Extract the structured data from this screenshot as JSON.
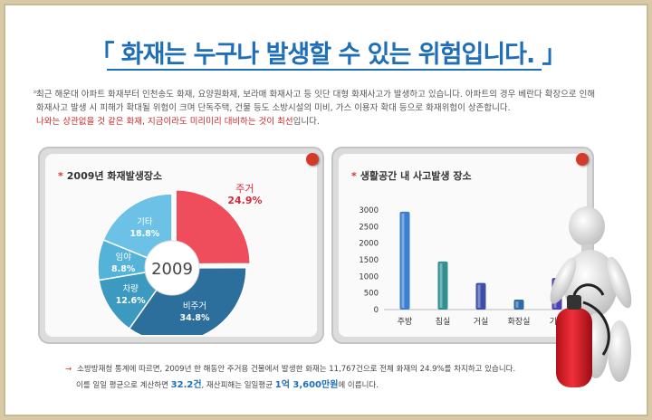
{
  "title": "「 화재는 누구나 발생할 수 있는 위험입니다. 」",
  "intro": {
    "bullet": "»",
    "line1": "최근 해운대 아파트 화재부터 인천송도 화재, 요양원화재, 보라매 화재사고 등 잇단 대형 화재사고가 발생하고 있습니다. 아파트의 경우 베란다 확장으로 인해",
    "line2": "화재사고 발생 시 피해가 확대될 위험이 크며 단독주택, 건물 등도 소방시설의 미비, 가스 이용자 확대 등으로 화재위험이 상존합니다.",
    "line3_red": "나와는 상관없을 것 같은 화재, 지금이라도 미리미리 대비하는 것이 최선",
    "line3_tail": "입니다."
  },
  "chart_data": [
    {
      "type": "pie",
      "title": "2009년 화재발생장소",
      "center_label": "2009",
      "categories": [
        "주거",
        "비주거",
        "차량",
        "임야",
        "기타"
      ],
      "values": [
        24.9,
        34.8,
        12.6,
        8.8,
        18.8
      ],
      "value_labels": [
        "24.9%",
        "34.8%",
        "12.6%",
        "8.8%",
        "18.8%"
      ],
      "colors": [
        "#ef4d5b",
        "#2d6f9c",
        "#3c9ac0",
        "#55b2d8",
        "#6cc2e6"
      ]
    },
    {
      "type": "bar",
      "title": "생활공간 내 사고발생 장소",
      "categories": [
        "주방",
        "침실",
        "거실",
        "화장실",
        "기타"
      ],
      "values": [
        2950,
        1450,
        800,
        300,
        950
      ],
      "colors": [
        "#3b7fcf",
        "#2f8f91",
        "#3d4fa8",
        "#2e6aa7",
        "#4a3fb4"
      ],
      "ylim": [
        0,
        3000
      ],
      "yticks": [
        0,
        500,
        1000,
        1500,
        2000,
        2500,
        3000
      ]
    }
  ],
  "footer": {
    "arrow": "→",
    "line1": "소방방재청 통계에 따르면, 2009년 한 해동안 주거용 건물에서 발생한 화재는 11,767건으로 전체 화재의 24.9%를 차지하고 있습니다.",
    "line2_a": "이를 일일 평균으로 계산하면 ",
    "line2_v1": "32.2건",
    "line2_b": ", 재산피해는 일일평균 ",
    "line2_v2": "1억 3,600만원",
    "line2_c": "에 이릅니다."
  }
}
